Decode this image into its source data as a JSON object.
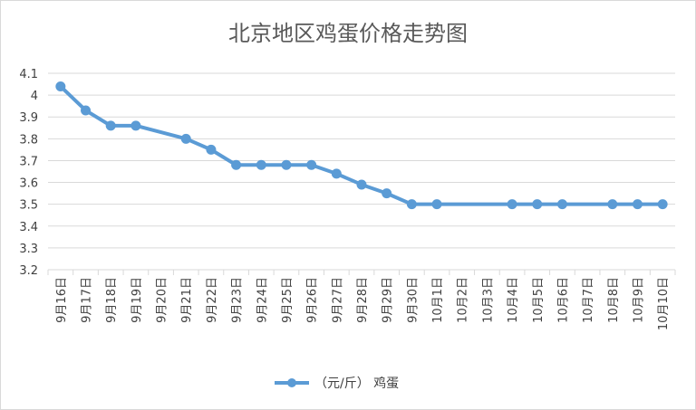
{
  "chart_data": {
    "type": "line",
    "title": "北京地区鸡蛋价格走势图",
    "xlabel": "",
    "ylabel": "",
    "ylim": [
      3.2,
      4.1
    ],
    "yticks": [
      "3.2",
      "3.3",
      "3.4",
      "3.5",
      "3.6",
      "3.7",
      "3.8",
      "3.9",
      "4",
      "4.1"
    ],
    "grid": true,
    "legend_position": "bottom",
    "categories": [
      "9月16日",
      "9月17日",
      "9月18日",
      "9月19日",
      "9月20日",
      "9月21日",
      "9月22日",
      "9月23日",
      "9月24日",
      "9月25日",
      "9月26日",
      "9月27日",
      "9月28日",
      "9月29日",
      "9月30日",
      "10月1日",
      "10月2日",
      "10月3日",
      "10月4日",
      "10月5日",
      "10月6日",
      "10月7日",
      "10月8日",
      "10月9日",
      "10月10日"
    ],
    "series": [
      {
        "name": "（元/斤） 鸡蛋",
        "color": "#5b9bd5",
        "values": [
          4.04,
          3.93,
          3.86,
          3.86,
          null,
          3.8,
          3.75,
          3.68,
          3.68,
          3.68,
          3.68,
          3.64,
          3.59,
          3.55,
          3.5,
          3.5,
          null,
          null,
          3.5,
          3.5,
          3.5,
          null,
          3.5,
          3.5,
          3.5
        ]
      }
    ]
  }
}
